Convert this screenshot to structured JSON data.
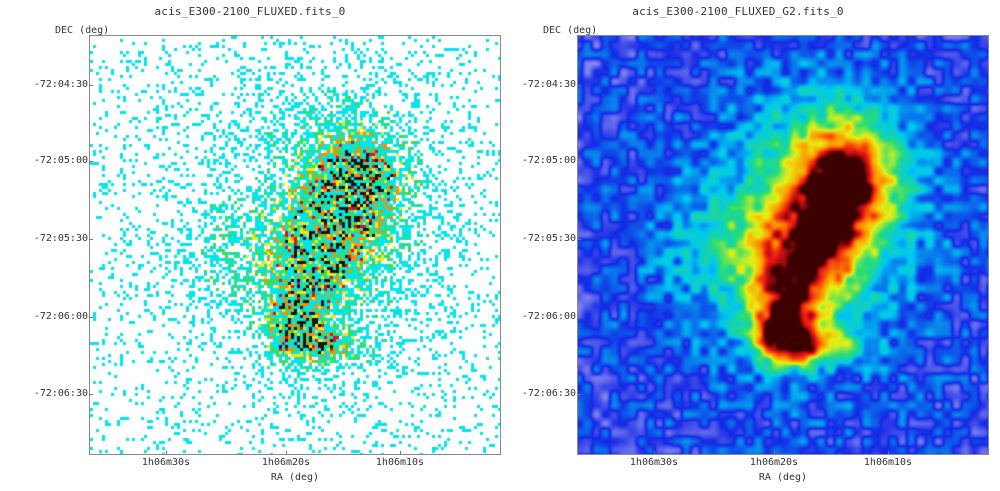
{
  "panels": [
    {
      "title": "acis_E300-2100_FLUXED.fits_0",
      "dec_axis_label": "DEC (deg)",
      "ra_axis_label": "RA (deg)",
      "dec_ticks": [
        "-72:04:30",
        "-72:05:00",
        "-72:05:30",
        "-72:06:00",
        "-72:06:30"
      ],
      "ra_ticks": [
        "1h06m30s",
        "1h06m20s",
        "1h06m10s"
      ],
      "colormap": "rainbow-sparse",
      "background_color": "#ffffff"
    },
    {
      "title": "acis_E300-2100_FLUXED_G2.fits_0",
      "dec_axis_label": "DEC (deg)",
      "ra_axis_label": "RA (deg)",
      "dec_ticks": [
        "-72:04:30",
        "-72:05:00",
        "-72:05:30",
        "-72:06:00",
        "-72:06:30"
      ],
      "ra_ticks": [
        "1h06m30s",
        "1h06m20s",
        "1h06m10s"
      ],
      "colormap": "rainbow-smoothed",
      "background_color": "#ffffff"
    }
  ]
}
